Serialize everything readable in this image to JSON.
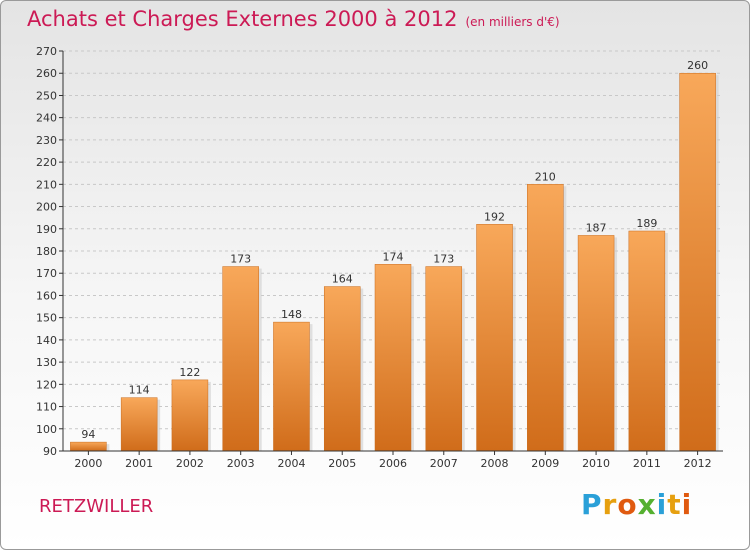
{
  "title": "Achats et Charges Externes 2000 à 2012",
  "unit": "(en milliers d'€)",
  "commune": "RETZWILLER",
  "logo": {
    "text": "Proxiti",
    "letters": [
      "P",
      "r",
      "o",
      "x",
      "i",
      "t",
      "i"
    ],
    "colors": [
      "#2aa0d8",
      "#e6a010",
      "#e05a10",
      "#55b030",
      "#2aa0d8",
      "#e6a010",
      "#e05a10"
    ]
  },
  "colors": {
    "title": "#cc1a55",
    "bar_top": "#f8a85a",
    "bar_bottom": "#d06c1a",
    "axis": "#333333"
  },
  "chart_data": {
    "type": "bar",
    "title": "Achats et Charges Externes 2000 à 2012",
    "categories": [
      "2000",
      "2001",
      "2002",
      "2003",
      "2004",
      "2005",
      "2006",
      "2007",
      "2008",
      "2009",
      "2010",
      "2011",
      "2012"
    ],
    "values": [
      94,
      114,
      122,
      173,
      148,
      164,
      174,
      173,
      192,
      210,
      187,
      189,
      260
    ],
    "ylim": [
      90,
      270
    ],
    "yticks": [
      90,
      100,
      110,
      120,
      130,
      140,
      150,
      160,
      170,
      180,
      190,
      200,
      210,
      220,
      230,
      240,
      250,
      260,
      270
    ],
    "grid": "y-dashed"
  }
}
